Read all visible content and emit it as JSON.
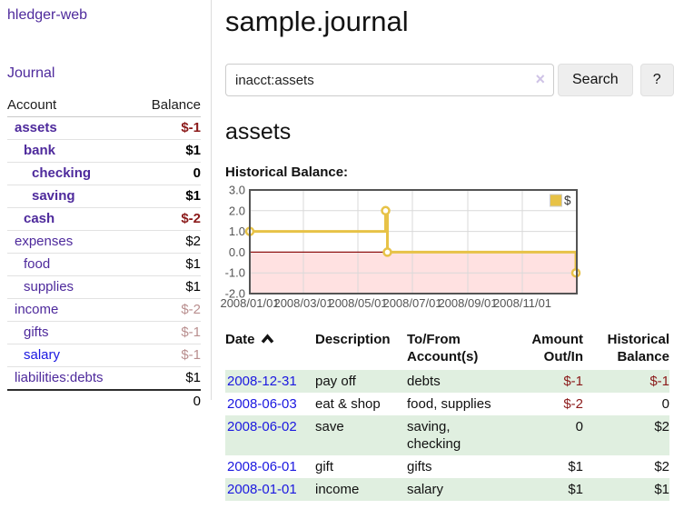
{
  "app": {
    "title": "hledger-web",
    "nav_journal": "Journal"
  },
  "colors": {
    "purple": "#4e2a9c",
    "link-blue": "#1b18e0",
    "neg-strong": "#8b1a1a",
    "neg-muted": "#b98f8f",
    "row-green": "#e0efe0"
  },
  "sidebar": {
    "columns": {
      "account": "Account",
      "balance": "Balance"
    },
    "accounts": [
      {
        "name": "assets",
        "balance": "$-1",
        "indent": 1,
        "bold": true,
        "cls": "negstrong"
      },
      {
        "name": "bank",
        "balance": "$1",
        "indent": 2,
        "bold": true,
        "cls": ""
      },
      {
        "name": "checking",
        "balance": "0",
        "indent": 3,
        "bold": true,
        "cls": ""
      },
      {
        "name": "saving",
        "balance": "$1",
        "indent": 3,
        "bold": true,
        "cls": ""
      },
      {
        "name": "cash",
        "balance": "$-2",
        "indent": 2,
        "bold": true,
        "cls": "negstrong"
      },
      {
        "name": "expenses",
        "balance": "$2",
        "indent": 1,
        "bold": false,
        "cls": ""
      },
      {
        "name": "food",
        "balance": "$1",
        "indent": 2,
        "bold": false,
        "cls": ""
      },
      {
        "name": "supplies",
        "balance": "$1",
        "indent": 2,
        "bold": false,
        "cls": ""
      },
      {
        "name": "income",
        "balance": "$-2",
        "indent": 1,
        "bold": false,
        "cls": "negmuted"
      },
      {
        "name": "gifts",
        "balance": "$-1",
        "indent": 2,
        "bold": false,
        "cls": "negmuted"
      },
      {
        "name": "salary",
        "balance": "$-1",
        "indent": 2,
        "bold": false,
        "cls": "negmuted",
        "blue": true
      },
      {
        "name": "liabilities:debts",
        "balance": "$1",
        "indent": 1,
        "bold": false,
        "cls": ""
      }
    ],
    "total": "0"
  },
  "main": {
    "title": "sample.journal",
    "search": {
      "value": "inacct:assets",
      "clear_icon": "×",
      "button_label": "Search",
      "help_label": "?"
    },
    "account_heading": "assets",
    "chart_heading": "Historical Balance:"
  },
  "chart_data": {
    "type": "line",
    "title": "Historical Balance",
    "step": true,
    "series": [
      {
        "name": "$",
        "points": [
          [
            "2008-01-01",
            1
          ],
          [
            "2008-06-01",
            2
          ],
          [
            "2008-06-03",
            0
          ],
          [
            "2008-12-31",
            -1
          ]
        ]
      }
    ],
    "xrange": [
      "2008-01-01",
      "2009-01-01"
    ],
    "ylim": [
      -2,
      3
    ],
    "yticks": [
      3.0,
      2.0,
      1.0,
      0.0,
      -1.0,
      -2.0
    ],
    "ytick_labels": [
      "3.0",
      "2.0",
      "1.0",
      "0.0",
      "-1.0",
      "-2.0"
    ],
    "xticks": [
      {
        "date": "2008-01-01",
        "label": "2008/01/01"
      },
      {
        "date": "2008-03-01",
        "label": "2008/03/01"
      },
      {
        "date": "2008-05-01",
        "label": "2008/05/01"
      },
      {
        "date": "2008-07-01",
        "label": "2008/07/01"
      },
      {
        "date": "2008-09-01",
        "label": "2008/09/01"
      },
      {
        "date": "2008-11-01",
        "label": "2008/11/01"
      }
    ],
    "legend": {
      "label": "$",
      "position": "top-right"
    },
    "grid": true,
    "negative_region_shaded": true,
    "colors": {
      "line": "#e7c247",
      "marker_fill": "#ffffff",
      "negative_fill": "#ffe1e1",
      "zero_line": "#8e1212",
      "grid": "#d9d9d9",
      "border": "#545454",
      "tick_text": "#545454",
      "legend_text": "#333333",
      "legend_box_border": "#cccccc"
    }
  },
  "register": {
    "columns": {
      "date": "Date",
      "description": "Description",
      "accounts": "To/From Account(s)",
      "amount": "Amount Out/In",
      "balance": "Historical Balance"
    },
    "rows": [
      {
        "date": "2008-12-31",
        "description": "pay off",
        "accounts": "debts",
        "amount": "$-1",
        "amount_neg": true,
        "balance": "$-1",
        "balance_neg": true
      },
      {
        "date": "2008-06-03",
        "description": "eat & shop",
        "accounts": "food, supplies",
        "amount": "$-2",
        "amount_neg": true,
        "balance": "0",
        "balance_neg": false
      },
      {
        "date": "2008-06-02",
        "description": "save",
        "accounts": "saving,\nchecking",
        "amount": "0",
        "amount_neg": false,
        "balance": "$2",
        "balance_neg": false
      },
      {
        "date": "2008-06-01",
        "description": "gift",
        "accounts": "gifts",
        "amount": "$1",
        "amount_neg": false,
        "balance": "$2",
        "balance_neg": false
      },
      {
        "date": "2008-01-01",
        "description": "income",
        "accounts": "salary",
        "amount": "$1",
        "amount_neg": false,
        "balance": "$1",
        "balance_neg": false
      }
    ]
  }
}
